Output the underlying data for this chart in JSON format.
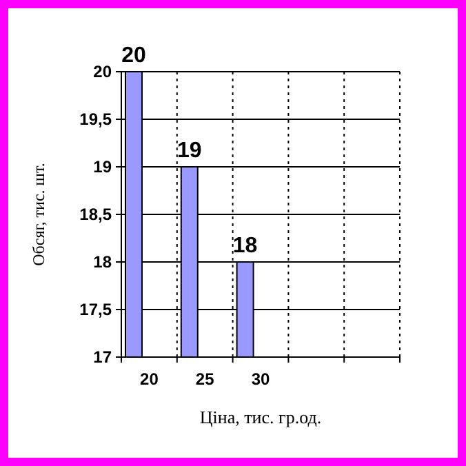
{
  "chart_data": {
    "type": "bar",
    "xlabel": "Ціна, тис. гр.од.",
    "ylabel": "Обсяг, тис. шт.",
    "categories": [
      "20",
      "25",
      "30",
      null,
      null
    ],
    "values": [
      20,
      19,
      18,
      null,
      null
    ],
    "color": "#9999ff",
    "ylim": [
      17,
      20
    ],
    "yticks": [
      17,
      {
        "value": 17.5,
        "label": "17,5"
      },
      18,
      {
        "value": 18.5,
        "label": "18,5"
      },
      19,
      {
        "value": 19.5,
        "label": "19,5"
      },
      20
    ],
    "grid": true,
    "data_labels": true
  }
}
